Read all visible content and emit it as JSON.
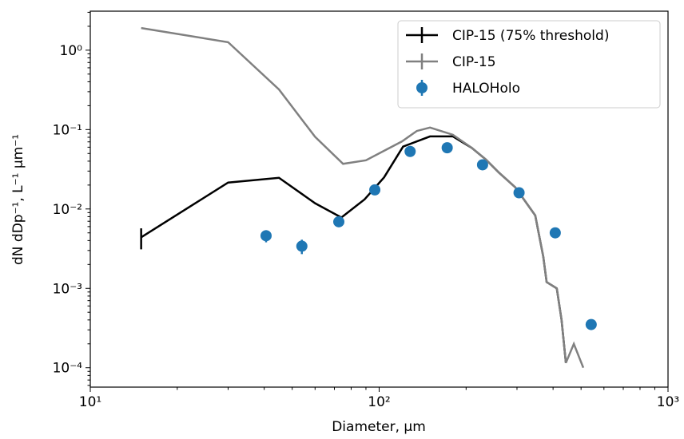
{
  "chart_data": {
    "type": "line",
    "xlabel": "Diameter, µm",
    "ylabel": "dN dDp⁻¹, L⁻¹ µm⁻¹",
    "xscale": "log",
    "yscale": "log",
    "xlim": [
      10,
      1000
    ],
    "ylim": [
      5.7e-05,
      3.1
    ],
    "xticks": [
      {
        "value": 10,
        "label": "10¹"
      },
      {
        "value": 100,
        "label": "10²"
      },
      {
        "value": 1000,
        "label": "10³"
      }
    ],
    "yticks": [
      {
        "value": 0.0001,
        "label": "10⁻⁴"
      },
      {
        "value": 0.001,
        "label": "10⁻³"
      },
      {
        "value": 0.01,
        "label": "10⁻²"
      },
      {
        "value": 0.1,
        "label": "10⁻¹"
      },
      {
        "value": 1,
        "label": "10⁰"
      }
    ],
    "legend": "upper right",
    "series": [
      {
        "name": "CIP-15 (75% threshold)",
        "color": "#000000",
        "style": "line",
        "x": [
          15,
          30,
          45,
          60,
          74,
          89,
          104,
          121,
          150,
          180,
          209,
          234,
          259,
          296,
          347,
          370,
          380,
          412,
          428,
          443
        ],
        "values": [
          0.0044,
          0.0215,
          0.0247,
          0.0118,
          0.0078,
          0.0132,
          0.025,
          0.061,
          0.082,
          0.082,
          0.059,
          0.042,
          0.029,
          0.0187,
          0.0083,
          0.0025,
          0.0012,
          0.001,
          0.0004,
          0.000115
        ],
        "errors": [
          0.0013,
          null,
          null,
          null,
          null,
          null,
          null,
          null,
          null,
          null,
          null,
          null,
          null,
          null,
          null,
          null,
          null,
          null,
          null,
          null
        ]
      },
      {
        "name": "CIP-15",
        "color": "#808080",
        "style": "line",
        "x": [
          15,
          30,
          45,
          60,
          75,
          90,
          105,
          120,
          135,
          150,
          180,
          209,
          234,
          259,
          296,
          347,
          370,
          380,
          412,
          428,
          443,
          472,
          509
        ],
        "values": [
          1.9,
          1.26,
          0.32,
          0.081,
          0.037,
          0.041,
          0.055,
          0.071,
          0.096,
          0.106,
          0.086,
          0.059,
          0.042,
          0.029,
          0.0187,
          0.0083,
          0.0025,
          0.0012,
          0.001,
          0.0004,
          0.000115,
          0.0002,
          0.0001
        ],
        "errors": [
          null,
          null,
          null,
          null,
          null,
          null,
          null,
          null,
          null,
          null,
          null,
          null,
          null,
          null,
          null,
          null,
          null,
          null,
          null,
          null,
          null,
          null,
          null
        ]
      },
      {
        "name": "HALOHolo",
        "color": "#1f77b4",
        "style": "marker",
        "x": [
          40.6,
          54,
          72.5,
          96.6,
          128,
          172,
          228,
          305,
          407,
          542
        ],
        "values": [
          0.0046,
          0.0034,
          0.0069,
          0.0174,
          0.053,
          0.059,
          0.036,
          0.016,
          0.005,
          0.00035
        ],
        "errors": [
          0.0008,
          0.0007,
          null,
          null,
          null,
          null,
          null,
          null,
          null,
          5e-05
        ]
      }
    ]
  }
}
